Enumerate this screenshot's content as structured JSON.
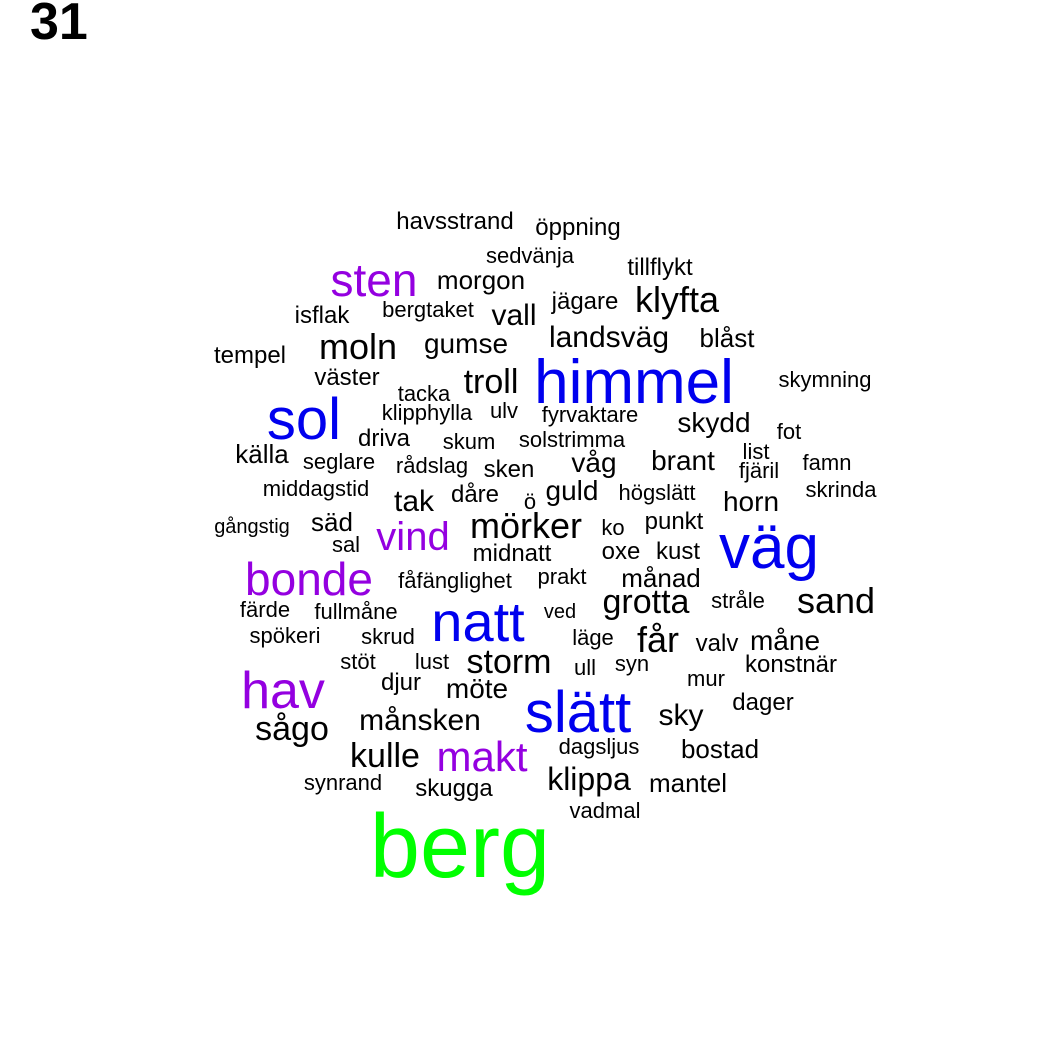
{
  "page_number": "31",
  "colors": {
    "black": "#000000",
    "blue": "#0000ee",
    "purple": "#9400e0",
    "green": "#00ff00"
  },
  "words": [
    {
      "text": "havsstrand",
      "color": "black"
    },
    {
      "text": "öppning",
      "color": "black"
    },
    {
      "text": "sedvänja",
      "color": "black"
    },
    {
      "text": "tillflykt",
      "color": "black"
    },
    {
      "text": "sten",
      "color": "purple"
    },
    {
      "text": "morgon",
      "color": "black"
    },
    {
      "text": "klyfta",
      "color": "black"
    },
    {
      "text": "jägare",
      "color": "black"
    },
    {
      "text": "isflak",
      "color": "black"
    },
    {
      "text": "bergtaket",
      "color": "black"
    },
    {
      "text": "vall",
      "color": "black"
    },
    {
      "text": "landsväg",
      "color": "black"
    },
    {
      "text": "blåst",
      "color": "black"
    },
    {
      "text": "tempel",
      "color": "black"
    },
    {
      "text": "moln",
      "color": "black"
    },
    {
      "text": "gumse",
      "color": "black"
    },
    {
      "text": "himmel",
      "color": "blue"
    },
    {
      "text": "väster",
      "color": "black"
    },
    {
      "text": "tacka",
      "color": "black"
    },
    {
      "text": "troll",
      "color": "black"
    },
    {
      "text": "skymning",
      "color": "black"
    },
    {
      "text": "sol",
      "color": "blue"
    },
    {
      "text": "klipphylla",
      "color": "black"
    },
    {
      "text": "ulv",
      "color": "black"
    },
    {
      "text": "fyrvaktare",
      "color": "black"
    },
    {
      "text": "skydd",
      "color": "black"
    },
    {
      "text": "fot",
      "color": "black"
    },
    {
      "text": "driva",
      "color": "black"
    },
    {
      "text": "skum",
      "color": "black"
    },
    {
      "text": "solstrimma",
      "color": "black"
    },
    {
      "text": "list",
      "color": "black"
    },
    {
      "text": "källa",
      "color": "black"
    },
    {
      "text": "seglare",
      "color": "black"
    },
    {
      "text": "rådslag",
      "color": "black"
    },
    {
      "text": "sken",
      "color": "black"
    },
    {
      "text": "våg",
      "color": "black"
    },
    {
      "text": "brant",
      "color": "black"
    },
    {
      "text": "fjäril",
      "color": "black"
    },
    {
      "text": "famn",
      "color": "black"
    },
    {
      "text": "middagstid",
      "color": "black"
    },
    {
      "text": "tak",
      "color": "black"
    },
    {
      "text": "dåre",
      "color": "black"
    },
    {
      "text": "ö",
      "color": "black"
    },
    {
      "text": "guld",
      "color": "black"
    },
    {
      "text": "högslätt",
      "color": "black"
    },
    {
      "text": "horn",
      "color": "black"
    },
    {
      "text": "skrinda",
      "color": "black"
    },
    {
      "text": "gångstig",
      "color": "black"
    },
    {
      "text": "säd",
      "color": "black"
    },
    {
      "text": "vind",
      "color": "purple"
    },
    {
      "text": "mörker",
      "color": "black"
    },
    {
      "text": "ko",
      "color": "black"
    },
    {
      "text": "punkt",
      "color": "black"
    },
    {
      "text": "väg",
      "color": "blue"
    },
    {
      "text": "sal",
      "color": "black"
    },
    {
      "text": "midnatt",
      "color": "black"
    },
    {
      "text": "oxe",
      "color": "black"
    },
    {
      "text": "kust",
      "color": "black"
    },
    {
      "text": "bonde",
      "color": "purple"
    },
    {
      "text": "fåfänglighet",
      "color": "black"
    },
    {
      "text": "prakt",
      "color": "black"
    },
    {
      "text": "månad",
      "color": "black"
    },
    {
      "text": "grotta",
      "color": "black"
    },
    {
      "text": "stråle",
      "color": "black"
    },
    {
      "text": "sand",
      "color": "black"
    },
    {
      "text": "färde",
      "color": "black"
    },
    {
      "text": "fullmåne",
      "color": "black"
    },
    {
      "text": "natt",
      "color": "blue"
    },
    {
      "text": "ved",
      "color": "black"
    },
    {
      "text": "spökeri",
      "color": "black"
    },
    {
      "text": "skrud",
      "color": "black"
    },
    {
      "text": "läge",
      "color": "black"
    },
    {
      "text": "får",
      "color": "black"
    },
    {
      "text": "valv",
      "color": "black"
    },
    {
      "text": "måne",
      "color": "black"
    },
    {
      "text": "stöt",
      "color": "black"
    },
    {
      "text": "lust",
      "color": "black"
    },
    {
      "text": "storm",
      "color": "black"
    },
    {
      "text": "ull",
      "color": "black"
    },
    {
      "text": "syn",
      "color": "black"
    },
    {
      "text": "konstnär",
      "color": "black"
    },
    {
      "text": "hav",
      "color": "purple"
    },
    {
      "text": "djur",
      "color": "black"
    },
    {
      "text": "möte",
      "color": "black"
    },
    {
      "text": "mur",
      "color": "black"
    },
    {
      "text": "slätt",
      "color": "blue"
    },
    {
      "text": "dager",
      "color": "black"
    },
    {
      "text": "sky",
      "color": "black"
    },
    {
      "text": "sågo",
      "color": "black"
    },
    {
      "text": "månsken",
      "color": "black"
    },
    {
      "text": "kulle",
      "color": "black"
    },
    {
      "text": "makt",
      "color": "purple"
    },
    {
      "text": "dagsljus",
      "color": "black"
    },
    {
      "text": "bostad",
      "color": "black"
    },
    {
      "text": "klippa",
      "color": "black"
    },
    {
      "text": "mantel",
      "color": "black"
    },
    {
      "text": "synrand",
      "color": "black"
    },
    {
      "text": "skugga",
      "color": "black"
    },
    {
      "text": "vadmal",
      "color": "black"
    },
    {
      "text": "berg",
      "color": "green"
    }
  ]
}
